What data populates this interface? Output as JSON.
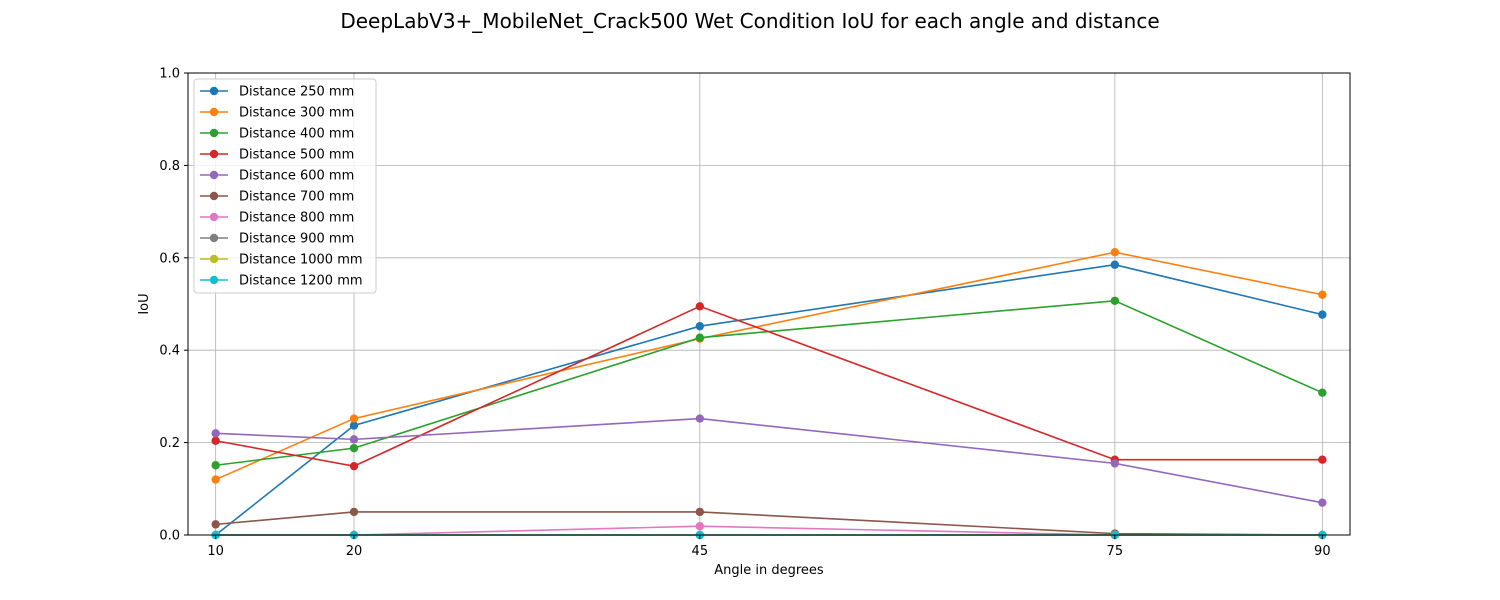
{
  "chart_data": {
    "type": "line",
    "title": "DeepLabV3+_MobileNet_Crack500 Wet Condition IoU for each angle and distance",
    "xlabel": "Angle in degrees",
    "ylabel": "IoU",
    "x": [
      10,
      20,
      45,
      75,
      90
    ],
    "x_tick_labels": [
      "10",
      "20",
      "45",
      "75",
      "90"
    ],
    "y_ticks": [
      0.0,
      0.2,
      0.4,
      0.6,
      0.8,
      1.0
    ],
    "y_tick_labels": [
      "0.0",
      "0.2",
      "0.4",
      "0.6",
      "0.8",
      "1.0"
    ],
    "xlim": [
      8,
      92
    ],
    "ylim": [
      0,
      1.0
    ],
    "grid": true,
    "legend_position": "top-left",
    "series": [
      {
        "name": "Distance 250 mm",
        "color": "#1f77b4",
        "values": [
          0.0,
          0.237,
          0.452,
          0.585,
          0.477
        ]
      },
      {
        "name": "Distance 300 mm",
        "color": "#ff7f0e",
        "values": [
          0.12,
          0.252,
          0.425,
          0.612,
          0.52
        ]
      },
      {
        "name": "Distance 400 mm",
        "color": "#2ca02c",
        "values": [
          0.151,
          0.188,
          0.427,
          0.507,
          0.308
        ]
      },
      {
        "name": "Distance 500 mm",
        "color": "#d62728",
        "values": [
          0.204,
          0.149,
          0.495,
          0.163,
          0.163
        ]
      },
      {
        "name": "Distance 600 mm",
        "color": "#9467bd",
        "values": [
          0.22,
          0.207,
          0.252,
          0.155,
          0.07
        ]
      },
      {
        "name": "Distance 700 mm",
        "color": "#8c564b",
        "values": [
          0.023,
          0.05,
          0.05,
          0.003,
          0.0
        ]
      },
      {
        "name": "Distance 800 mm",
        "color": "#e377c2",
        "values": [
          0.0,
          0.0,
          0.019,
          0.0,
          0.0
        ]
      },
      {
        "name": "Distance 900 mm",
        "color": "#7f7f7f",
        "values": [
          0.0,
          0.0,
          0.0,
          0.0,
          0.0
        ]
      },
      {
        "name": "Distance 1000 mm",
        "color": "#bcbd22",
        "values": [
          0.0,
          0.0,
          0.0,
          0.0,
          0.0
        ]
      },
      {
        "name": "Distance 1200 mm",
        "color": "#17becf",
        "values": [
          0.0,
          0.0,
          0.0,
          0.0,
          0.0
        ]
      }
    ]
  }
}
